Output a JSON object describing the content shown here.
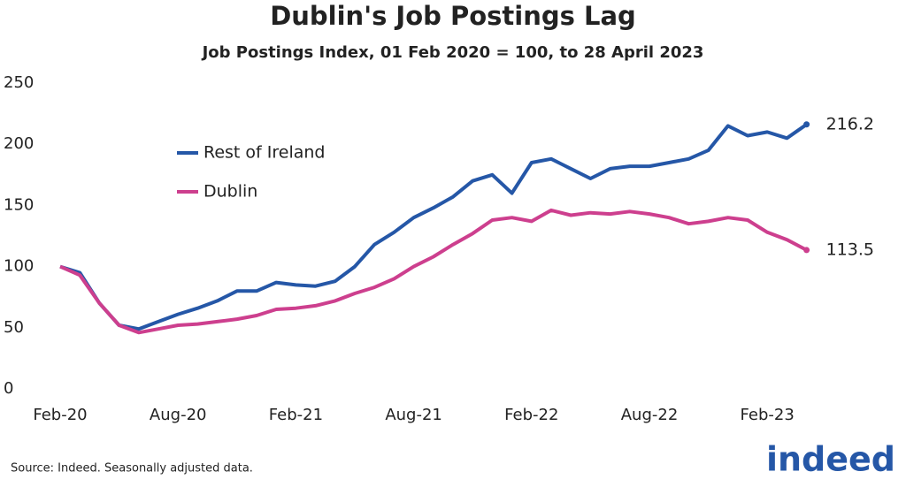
{
  "chart_data": {
    "type": "line",
    "title": "Dublin's Job Postings Lag",
    "subtitle": "Job Postings Index, 01 Feb 2020 = 100, to 28 April 2023",
    "source": "Source: Indeed. Seasonally adjusted data.",
    "logo": "indeed",
    "categories": [
      "Feb-20",
      null,
      null,
      null,
      null,
      null,
      "Aug-20",
      null,
      null,
      null,
      null,
      null,
      "Feb-21",
      null,
      null,
      null,
      null,
      null,
      "Aug-21",
      null,
      null,
      null,
      null,
      null,
      "Feb-22",
      null,
      null,
      null,
      null,
      null,
      "Aug-22",
      null,
      null,
      null,
      null,
      null,
      "Feb-23",
      null,
      null
    ],
    "series": [
      {
        "name": "Rest of Ireland",
        "color": "#2557a7",
        "values": [
          100,
          95,
          70,
          52,
          49,
          55,
          61,
          66,
          72,
          80,
          80,
          87,
          85,
          84,
          88,
          100,
          118,
          128,
          140,
          148,
          157,
          170,
          175,
          160,
          185,
          188,
          180,
          172,
          180,
          182,
          182,
          185,
          188,
          195,
          215,
          207,
          210,
          205,
          216.2
        ]
      },
      {
        "name": "Dublin",
        "color": "#cd3f8e",
        "values": [
          100,
          93,
          70,
          52,
          46,
          49,
          52,
          53,
          55,
          57,
          60,
          65,
          66,
          68,
          72,
          78,
          83,
          90,
          100,
          108,
          118,
          127,
          138,
          140,
          137,
          146,
          142,
          144,
          143,
          145,
          143,
          140,
          135,
          137,
          140,
          138,
          128,
          122,
          113.5
        ]
      }
    ],
    "ylim": [
      0,
      250
    ],
    "yticks": [
      0,
      50,
      100,
      150,
      200,
      250
    ],
    "grid": false
  }
}
